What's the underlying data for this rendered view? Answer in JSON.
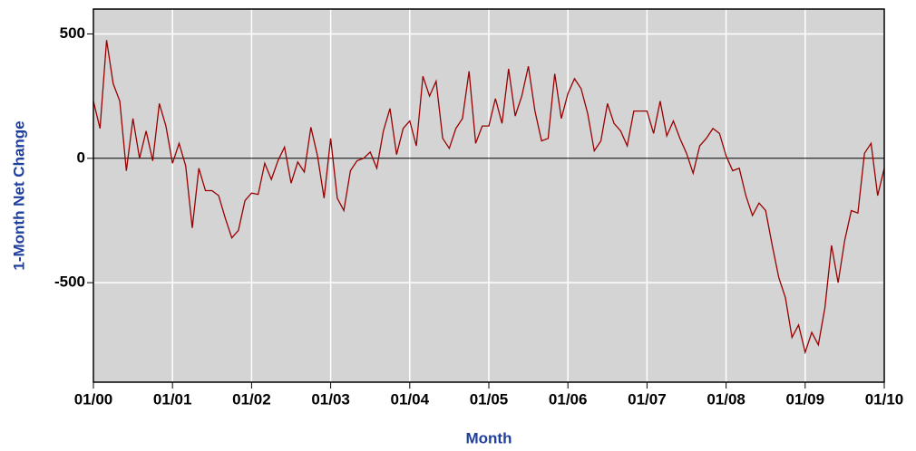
{
  "chart_data": {
    "type": "line",
    "x_label": "Month",
    "y_label": "1-Month Net Change",
    "x": [
      "01/00",
      "02/00",
      "03/00",
      "04/00",
      "05/00",
      "06/00",
      "07/00",
      "08/00",
      "09/00",
      "10/00",
      "11/00",
      "12/00",
      "01/01",
      "02/01",
      "03/01",
      "04/01",
      "05/01",
      "06/01",
      "07/01",
      "08/01",
      "09/01",
      "10/01",
      "11/01",
      "12/01",
      "01/02",
      "02/02",
      "03/02",
      "04/02",
      "05/02",
      "06/02",
      "07/02",
      "08/02",
      "09/02",
      "10/02",
      "11/02",
      "12/02",
      "01/03",
      "02/03",
      "03/03",
      "04/03",
      "05/03",
      "06/03",
      "07/03",
      "08/03",
      "09/03",
      "10/03",
      "11/03",
      "12/03",
      "01/04",
      "02/04",
      "03/04",
      "04/04",
      "05/04",
      "06/04",
      "07/04",
      "08/04",
      "09/04",
      "10/04",
      "11/04",
      "12/04",
      "01/05",
      "02/05",
      "03/05",
      "04/05",
      "05/05",
      "06/05",
      "07/05",
      "08/05",
      "09/05",
      "10/05",
      "11/05",
      "12/05",
      "01/06",
      "02/06",
      "03/06",
      "04/06",
      "05/06",
      "06/06",
      "07/06",
      "08/06",
      "09/06",
      "10/06",
      "11/06",
      "12/06",
      "01/07",
      "02/07",
      "03/07",
      "04/07",
      "05/07",
      "06/07",
      "07/07",
      "08/07",
      "09/07",
      "10/07",
      "11/07",
      "12/07",
      "01/08",
      "02/08",
      "03/08",
      "04/08",
      "05/08",
      "06/08",
      "07/08",
      "08/08",
      "09/08",
      "10/08",
      "11/08",
      "12/08",
      "01/09",
      "02/09",
      "03/09",
      "04/09",
      "05/09",
      "06/09",
      "07/09",
      "08/09",
      "09/09",
      "10/09",
      "11/09",
      "12/09",
      "01/10"
    ],
    "series": [
      {
        "name": "1-Month Net Change",
        "color": "#990000",
        "values": [
          230,
          120,
          475,
          300,
          230,
          -50,
          160,
          0,
          110,
          -10,
          220,
          130,
          -20,
          60,
          -30,
          -280,
          -40,
          -130,
          -130,
          -150,
          -240,
          -320,
          -290,
          -170,
          -140,
          -145,
          -20,
          -85,
          -10,
          45,
          -100,
          -15,
          -55,
          125,
          10,
          -160,
          80,
          -160,
          -210,
          -50,
          -10,
          0,
          25,
          -40,
          110,
          200,
          15,
          120,
          150,
          50,
          330,
          250,
          310,
          80,
          40,
          120,
          160,
          350,
          60,
          130,
          130,
          240,
          140,
          360,
          170,
          250,
          370,
          190,
          70,
          80,
          340,
          160,
          260,
          320,
          280,
          180,
          30,
          70,
          220,
          140,
          110,
          50,
          190,
          190,
          190,
          100,
          230,
          90,
          150,
          80,
          20,
          -60,
          50,
          80,
          120,
          100,
          10,
          -50,
          -40,
          -150,
          -230,
          -180,
          -210,
          -350,
          -480,
          -560,
          -720,
          -670,
          -780,
          -700,
          -750,
          -600,
          -350,
          -500,
          -330,
          -210,
          -220,
          20,
          60,
          -150,
          -40
        ]
      }
    ],
    "xticks": [
      "01/00",
      "01/01",
      "01/02",
      "01/03",
      "01/04",
      "01/05",
      "01/06",
      "01/07",
      "01/08",
      "01/09",
      "01/10"
    ],
    "ylim": [
      -900,
      600
    ],
    "yticks": [
      -500,
      0,
      500
    ],
    "grid": true
  }
}
